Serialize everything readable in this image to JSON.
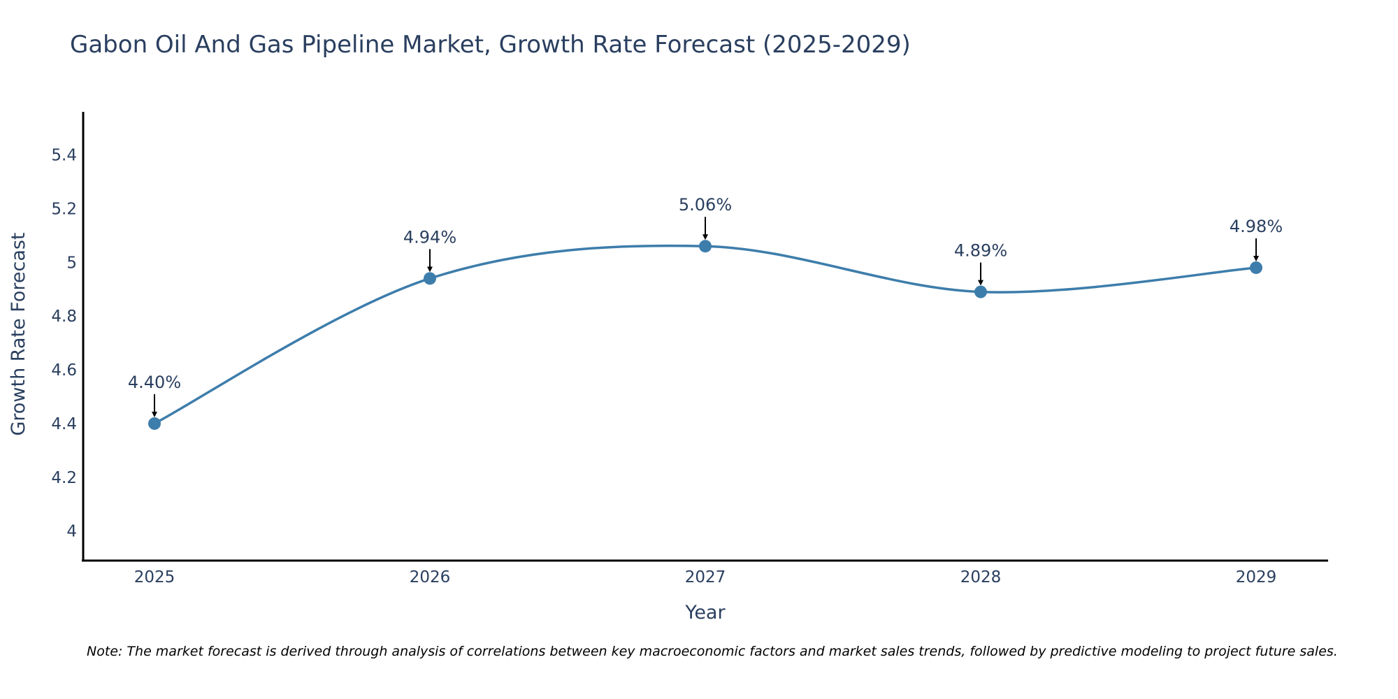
{
  "chart_data": {
    "type": "line",
    "title": "Gabon Oil And Gas Pipeline Market, Growth Rate Forecast (2025-2029)",
    "xlabel": "Year",
    "ylabel": "Growth Rate Forecast",
    "categories": [
      "2025",
      "2026",
      "2027",
      "2028",
      "2029"
    ],
    "series": [
      {
        "name": "Growth Rate Forecast",
        "values": [
          4.4,
          4.94,
          5.06,
          4.89,
          4.98
        ],
        "labels": [
          "4.40%",
          "4.94%",
          "5.06%",
          "4.89%",
          "4.98%"
        ]
      }
    ],
    "yticks": [
      4,
      4.2,
      4.4,
      4.6,
      4.8,
      5,
      5.2,
      5.4
    ],
    "ytick_labels": [
      "4",
      "4.2",
      "4.4",
      "4.6",
      "4.8",
      "5",
      "5.2",
      "5.4"
    ],
    "ylim": [
      3.89,
      5.56
    ],
    "grid": false,
    "legend": false,
    "line_color": "#3d7dab",
    "marker_color": "#3d7dab",
    "arrow_color": "#000000",
    "note": "Note: The market forecast is derived through analysis of correlations between key macroeconomic factors and market sales trends, followed by predictive modeling to project future sales."
  }
}
